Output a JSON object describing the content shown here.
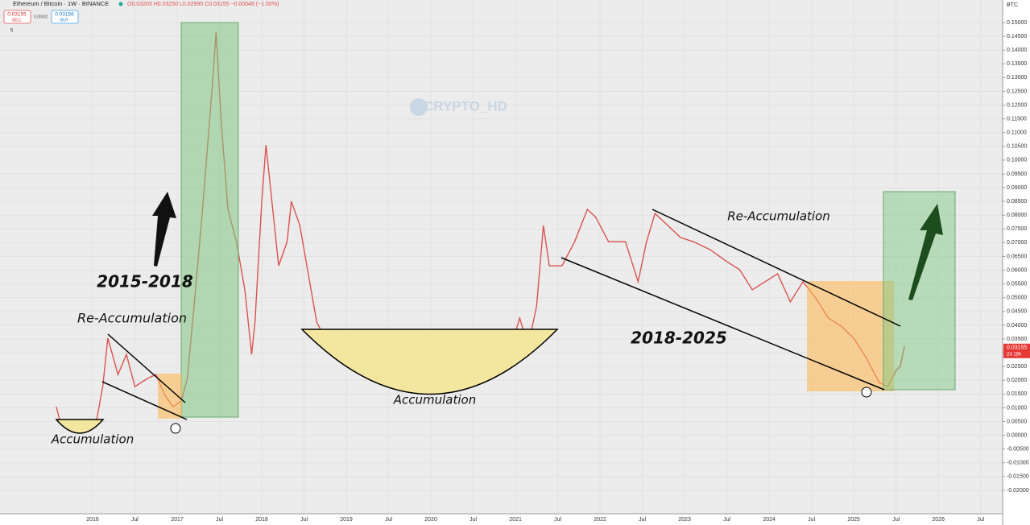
{
  "toolbar": {
    "symbol": "Ethereum / Bitcoin · 1W · BINANCE",
    "ohlc": "O0.03203 H0.03250 L0.02995 C0.03155 −0.00048 (−1.50%)",
    "sell_price": "0.03155",
    "sell": "SELL",
    "spread": "0.00001",
    "buy_price": "0.03156",
    "buy": "BUY",
    "interval": "5",
    "watermark": "CRYPTO_HD",
    "currency": "BTC"
  },
  "chart_data": {
    "type": "line",
    "annotations": [
      "2015-2018",
      "Re-Accumulation",
      "Accumulation",
      "Accumulation",
      "2018-2025",
      "Re-Accumulation"
    ],
    "last_price": 0.03155,
    "countdown": "2d 18h",
    "xlim": [
      2014.905,
      2026.76
    ],
    "ylim": [
      -0.0285,
      0.1582
    ],
    "series": [
      {
        "name": "ETHBTC",
        "color": "#d9534f",
        "x": [
          2015.57,
          2015.62,
          2015.75,
          2015.9,
          2016.05,
          2016.12,
          2016.18,
          2016.3,
          2016.4,
          2016.5,
          2016.65,
          2016.75,
          2016.85,
          2016.95,
          2017.05,
          2017.12,
          2017.2,
          2017.3,
          2017.42,
          2017.46,
          2017.52,
          2017.6,
          2017.7,
          2017.8,
          2017.88,
          2017.92,
          2018.0,
          2018.05,
          2018.12,
          2018.2,
          2018.3,
          2018.35,
          2018.45,
          2018.55,
          2018.65,
          2018.75,
          2018.9,
          2019.0,
          2019.15,
          2019.3,
          2019.45,
          2019.55,
          2019.7,
          2019.85,
          2020.0,
          2020.15,
          2020.3,
          2020.45,
          2020.55,
          2020.7,
          2020.85,
          2020.95,
          2021.05,
          2021.15,
          2021.25,
          2021.33,
          2021.4,
          2021.55,
          2021.7,
          2021.85,
          2021.95,
          2022.1,
          2022.3,
          2022.45,
          2022.55,
          2022.65,
          2022.8,
          2022.95,
          2023.1,
          2023.3,
          2023.5,
          2023.65,
          2023.8,
          2023.95,
          2024.1,
          2024.25,
          2024.4,
          2024.55,
          2024.7,
          2024.85,
          2025.0,
          2025.15,
          2025.3,
          2025.4,
          2025.5,
          2025.55,
          2025.6
        ],
        "values": [
          0.0104,
          0.0046,
          0.0031,
          0.0031,
          0.006,
          0.0177,
          0.0353,
          0.0221,
          0.0294,
          0.0177,
          0.0207,
          0.0221,
          0.0148,
          0.0104,
          0.0125,
          0.0207,
          0.047,
          0.0821,
          0.1289,
          0.1465,
          0.1143,
          0.0821,
          0.0704,
          0.0529,
          0.0294,
          0.0411,
          0.085,
          0.1055,
          0.085,
          0.0616,
          0.0704,
          0.085,
          0.0763,
          0.0587,
          0.0411,
          0.0353,
          0.0294,
          0.0338,
          0.0324,
          0.0294,
          0.0221,
          0.0183,
          0.0207,
          0.0221,
          0.0207,
          0.0251,
          0.0236,
          0.0265,
          0.0353,
          0.0324,
          0.028,
          0.0324,
          0.0426,
          0.0324,
          0.047,
          0.0763,
          0.0616,
          0.0616,
          0.0704,
          0.0821,
          0.0792,
          0.0704,
          0.0704,
          0.0558,
          0.0704,
          0.0806,
          0.0763,
          0.0719,
          0.0704,
          0.0675,
          0.0631,
          0.0602,
          0.0529,
          0.0558,
          0.0587,
          0.0485,
          0.0558,
          0.0499,
          0.0426,
          0.0397,
          0.0353,
          0.028,
          0.0192,
          0.0177,
          0.0236,
          0.0251,
          0.0324
        ]
      }
    ],
    "xticks": [
      {
        "value": 2016,
        "label": "2016"
      },
      {
        "value": 2016.5,
        "label": "Jul"
      },
      {
        "value": 2017,
        "label": "2017"
      },
      {
        "value": 2017.5,
        "label": "Jul"
      },
      {
        "value": 2018,
        "label": "2018"
      },
      {
        "value": 2018.5,
        "label": "Jul"
      },
      {
        "value": 2019,
        "label": "2019"
      },
      {
        "value": 2019.5,
        "label": "Jul"
      },
      {
        "value": 2020,
        "label": "2020"
      },
      {
        "value": 2020.5,
        "label": "Jul"
      },
      {
        "value": 2021,
        "label": "2021"
      },
      {
        "value": 2021.5,
        "label": "Jul"
      },
      {
        "value": 2022,
        "label": "2022"
      },
      {
        "value": 2022.5,
        "label": "Jul"
      },
      {
        "value": 2023,
        "label": "2023"
      },
      {
        "value": 2023.5,
        "label": "Jul"
      },
      {
        "value": 2024,
        "label": "2024"
      },
      {
        "value": 2024.5,
        "label": "Jul"
      },
      {
        "value": 2025,
        "label": "2025"
      },
      {
        "value": 2025.5,
        "label": "Jul"
      },
      {
        "value": 2026,
        "label": "2026"
      },
      {
        "value": 2026.5,
        "label": "Jul"
      }
    ],
    "yticks": [
      {
        "value": 0.15,
        "label": "0.15000"
      },
      {
        "value": 0.145,
        "label": "0.14500"
      },
      {
        "value": 0.14,
        "label": "0.14000"
      },
      {
        "value": 0.135,
        "label": "0.13500"
      },
      {
        "value": 0.13,
        "label": "0.13000"
      },
      {
        "value": 0.125,
        "label": "0.12500"
      },
      {
        "value": 0.12,
        "label": "0.12000"
      },
      {
        "value": 0.115,
        "label": "0.11500"
      },
      {
        "value": 0.11,
        "label": "0.11000"
      },
      {
        "value": 0.105,
        "label": "0.10500"
      },
      {
        "value": 0.1,
        "label": "0.10000"
      },
      {
        "value": 0.095,
        "label": "0.09500"
      },
      {
        "value": 0.09,
        "label": "0.09000"
      },
      {
        "value": 0.085,
        "label": "0.08500"
      },
      {
        "value": 0.08,
        "label": "0.08000"
      },
      {
        "value": 0.075,
        "label": "0.07500"
      },
      {
        "value": 0.07,
        "label": "0.07000"
      },
      {
        "value": 0.065,
        "label": "0.06500"
      },
      {
        "value": 0.06,
        "label": "0.06000"
      },
      {
        "value": 0.055,
        "label": "0.05500"
      },
      {
        "value": 0.05,
        "label": "0.05000"
      },
      {
        "value": 0.045,
        "label": "0.04500"
      },
      {
        "value": 0.04,
        "label": "0.04000"
      },
      {
        "value": 0.035,
        "label": "0.03500"
      },
      {
        "value": 0.03,
        "label": "0.03000"
      },
      {
        "value": 0.025,
        "label": "0.02500"
      },
      {
        "value": 0.02,
        "label": "0.02000"
      },
      {
        "value": 0.015,
        "label": "0.01500"
      },
      {
        "value": 0.01,
        "label": "0.01000"
      },
      {
        "value": 0.005,
        "label": "0.00500"
      },
      {
        "value": 0,
        "label": "0.00000"
      },
      {
        "value": -0.005,
        "label": "-0.00500"
      },
      {
        "value": -0.01,
        "label": "-0.01000"
      },
      {
        "value": -0.015,
        "label": "-0.01500"
      },
      {
        "value": -0.02,
        "label": "-0.02000"
      }
    ]
  }
}
